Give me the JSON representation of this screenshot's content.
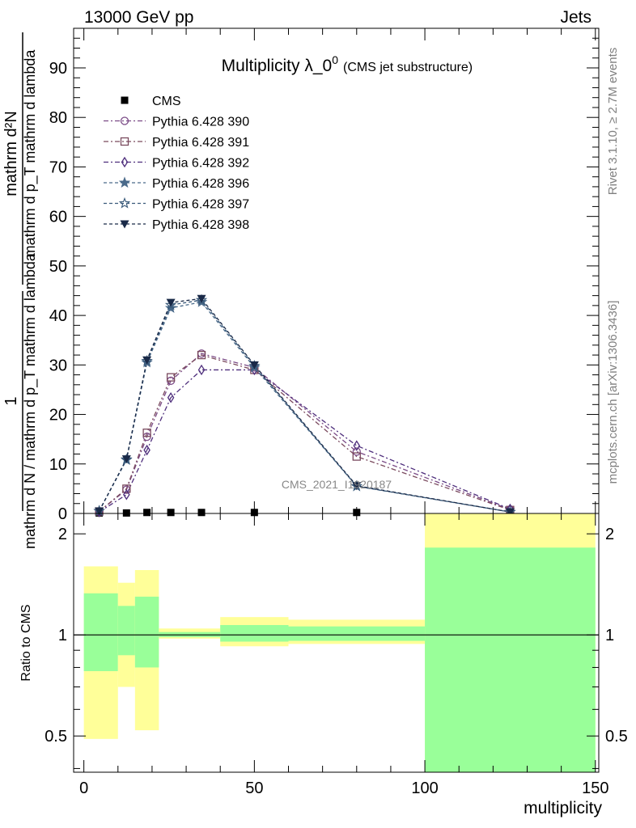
{
  "header": {
    "left": "13000 GeV pp",
    "right": "Jets"
  },
  "side_text": {
    "rivet": "Rivet 3.1.10, ≥ 2.7M events",
    "mcplots": "mcplots.cern.ch [arXiv:1306.3436]"
  },
  "watermark": "CMS_2021_I1920187",
  "colors": {
    "p390": "#7a4a86",
    "p391": "#7a4a5e",
    "p392": "#4e2e7c",
    "p396": "#4a6a8a",
    "p397": "#3a5a7a",
    "p398": "#1a2a48",
    "band_outer": "#ffff99",
    "band_inner": "#99ff99"
  },
  "chart_data": [
    {
      "type": "line",
      "title": "Multiplicity λ_0",
      "title_sup": "0",
      "title_suffix": "(CMS jet substructure)",
      "ylabel_fraction_num": "1",
      "ylabel_fraction_den": "mathrm d N / mathrm d p_T mathrm d lambda",
      "ylabel_fraction_den_sub": "T",
      "ylabel_num": "mathrm d²N",
      "ylabel_den": "mathrm d p_T mathrm d lambda",
      "ylim": [
        0,
        98
      ],
      "yticks": [
        0,
        10,
        20,
        30,
        40,
        50,
        60,
        70,
        80,
        90
      ],
      "xlim": [
        -3,
        151
      ],
      "legend_position": "top-left",
      "series": [
        {
          "name": "CMS",
          "marker": "square",
          "color": "#000000",
          "dash": "",
          "x": [
            4.5,
            12.5,
            18.5,
            25.5,
            34.5,
            50,
            80,
            125
          ],
          "y": [
            0.1,
            0.1,
            0.2,
            0.2,
            0.2,
            0.2,
            0.2,
            0.0
          ]
        },
        {
          "name": "Pythia 6.428 390",
          "marker": "circle",
          "color": "#7a4a86",
          "dash": "6,3,2,3",
          "x": [
            4.5,
            12.5,
            18.5,
            25.5,
            34.5,
            50,
            80,
            125
          ],
          "y": [
            0.4,
            4.8,
            15.5,
            26.8,
            32.3,
            29.5,
            12.5,
            0.8
          ]
        },
        {
          "name": "Pythia 6.428 391",
          "marker": "square-open",
          "color": "#7a4a5e",
          "dash": "6,3,2,3",
          "x": [
            4.5,
            12.5,
            18.5,
            25.5,
            34.5,
            50,
            80,
            125
          ],
          "y": [
            0.4,
            5.0,
            16.3,
            27.5,
            32.0,
            29.0,
            11.5,
            0.7
          ]
        },
        {
          "name": "Pythia 6.428 392",
          "marker": "diamond",
          "color": "#4e2e7c",
          "dash": "6,3,2,3",
          "x": [
            4.5,
            12.5,
            18.5,
            25.5,
            34.5,
            50,
            80,
            125
          ],
          "y": [
            0.3,
            3.8,
            12.8,
            23.4,
            29.0,
            29.0,
            13.7,
            0.9
          ]
        },
        {
          "name": "Pythia 6.428 396",
          "marker": "star",
          "color": "#4a6a8a",
          "dash": "4,3",
          "x": [
            4.5,
            12.5,
            18.5,
            25.5,
            34.5,
            50,
            80,
            125
          ],
          "y": [
            0.5,
            10.8,
            30.5,
            41.5,
            42.7,
            29.5,
            5.5,
            0.3
          ]
        },
        {
          "name": "Pythia 6.428 397",
          "marker": "star-open",
          "color": "#3a5a7a",
          "dash": "4,3",
          "x": [
            4.5,
            12.5,
            18.5,
            25.5,
            34.5,
            50,
            80,
            125
          ],
          "y": [
            0.5,
            10.9,
            30.8,
            42.1,
            43.1,
            29.8,
            5.5,
            0.3
          ]
        },
        {
          "name": "Pythia 6.428 398",
          "marker": "triangle-down",
          "color": "#1a2a48",
          "dash": "4,3",
          "x": [
            4.5,
            12.5,
            18.5,
            25.5,
            34.5,
            50,
            80,
            125
          ],
          "y": [
            0.5,
            11.0,
            31.0,
            42.6,
            43.4,
            30.0,
            5.6,
            0.3
          ]
        }
      ]
    },
    {
      "type": "area",
      "ylabel": "Ratio to CMS",
      "xlabel": "multiplicity",
      "scale": "log",
      "ylim": [
        0.39,
        2.3
      ],
      "yticks": [
        0.5,
        1,
        2
      ],
      "xlim": [
        -3,
        151
      ],
      "xticks": [
        0,
        50,
        100,
        150
      ],
      "bins": [
        {
          "x0": 0,
          "x1": 10,
          "outer": [
            0.49,
            1.6
          ],
          "inner": [
            0.78,
            1.33
          ]
        },
        {
          "x0": 10,
          "x1": 15,
          "outer": [
            0.7,
            1.43
          ],
          "inner": [
            0.87,
            1.22
          ]
        },
        {
          "x0": 15,
          "x1": 22,
          "outer": [
            0.52,
            1.56
          ],
          "inner": [
            0.8,
            1.3
          ]
        },
        {
          "x0": 22,
          "x1": 40,
          "outer": [
            0.975,
            1.045
          ],
          "inner": [
            0.985,
            1.02
          ]
        },
        {
          "x0": 40,
          "x1": 60,
          "outer": [
            0.925,
            1.13
          ],
          "inner": [
            0.955,
            1.07
          ]
        },
        {
          "x0": 60,
          "x1": 100,
          "outer": [
            0.94,
            1.11
          ],
          "inner": [
            0.96,
            1.06
          ]
        },
        {
          "x0": 100,
          "x1": 150,
          "outer": [
            0.39,
            2.3
          ],
          "inner": [
            0.39,
            1.82
          ]
        }
      ]
    }
  ]
}
